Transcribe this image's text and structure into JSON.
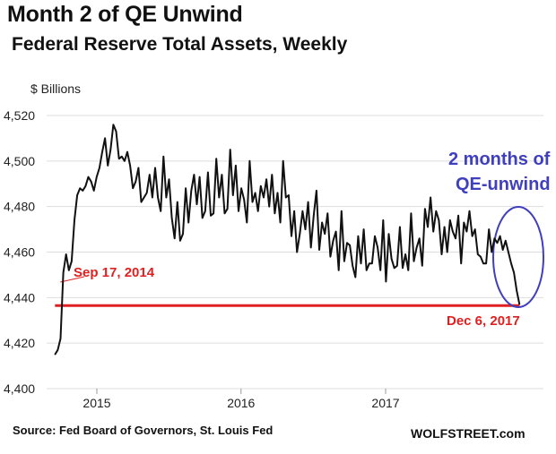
{
  "title": "Month 2 of QE Unwind",
  "subtitle": "Federal Reserve Total Assets, Weekly",
  "source": "Source: Fed Board of Governors, St. Louis Fed",
  "brand": "WOLFSTREET.com",
  "colors": {
    "line": "#111111",
    "reference_line": "#e02020",
    "annotation_red": "#e02020",
    "annotation_blue": "#3f3fbf",
    "grid": "#dddddd"
  },
  "chart_data": {
    "type": "line",
    "title": "Federal Reserve Total Assets, Weekly",
    "ylabel": "$ Billions",
    "xlabel": "",
    "ylim": [
      4400,
      4525
    ],
    "yticks": [
      4400,
      4420,
      4440,
      4460,
      4480,
      4500,
      4520
    ],
    "ytick_labels": [
      "4,400",
      "4,420",
      "4,440",
      "4,460",
      "4,480",
      "4,500",
      "4,520"
    ],
    "xticks": [
      {
        "label": "2015",
        "x": "2015-01-01"
      },
      {
        "label": "2016",
        "x": "2016-01-01"
      },
      {
        "label": "2017",
        "x": "2017-01-01"
      }
    ],
    "grid": "horizontal",
    "series": [
      {
        "frequency": "weekly",
        "start": "2014-09-17",
        "end": "2017-12-06",
        "values": [
          4415,
          4417,
          4422,
          4451,
          4459,
          4452,
          4456,
          4474,
          4485,
          4488,
          4487,
          4489,
          4493,
          4491,
          4487,
          4493,
          4497,
          4504,
          4510,
          4498,
          4505,
          4516,
          4513,
          4501,
          4502,
          4500,
          4504,
          4498,
          4488,
          4491,
          4497,
          4482,
          4484,
          4486,
          4494,
          4484,
          4497,
          4484,
          4478,
          4502,
          4484,
          4492,
          4475,
          4466,
          4482,
          4465,
          4468,
          4488,
          4473,
          4487,
          4494,
          4481,
          4493,
          4475,
          4478,
          4495,
          4476,
          4477,
          4501,
          4484,
          4494,
          4477,
          4479,
          4505,
          4485,
          4498,
          4478,
          4488,
          4483,
          4473,
          4500,
          4482,
          4486,
          4478,
          4489,
          4484,
          4492,
          4480,
          4494,
          4477,
          4486,
          4473,
          4500,
          4484,
          4485,
          4467,
          4478,
          4460,
          4468,
          4478,
          4470,
          4482,
          4462,
          4476,
          4487,
          4461,
          4473,
          4468,
          4477,
          4458,
          4465,
          4469,
          4452,
          4478,
          4456,
          4464,
          4463,
          4454,
          4449,
          4467,
          4455,
          4470,
          4452,
          4455,
          4455,
          4467,
          4462,
          4452,
          4474,
          4447,
          4468,
          4457,
          4453,
          4454,
          4471,
          4453,
          4459,
          4452,
          4477,
          4456,
          4462,
          4466,
          4454,
          4479,
          4471,
          4484,
          4469,
          4478,
          4474,
          4459,
          4471,
          4460,
          4474,
          4469,
          4466,
          4476,
          4455,
          4473,
          4469,
          4478,
          4467,
          4470,
          4459,
          4458,
          4455,
          4455,
          4470,
          4460,
          4466,
          4464,
          4467,
          4461,
          4465,
          4460,
          4455,
          4451,
          4443,
          4437
        ]
      }
    ],
    "reference_line": {
      "y": 4436.5,
      "start": "2014-09-17",
      "end": "2017-12-06"
    },
    "annotations": [
      {
        "text": "Sep 17, 2014",
        "x": "2014-09-17"
      },
      {
        "text": "Dec 6, 2017",
        "x": "2017-12-06"
      },
      {
        "text": "2 months of",
        "x": "2017-10-11"
      },
      {
        "text": "QE-unwind",
        "x": "2017-10-11"
      }
    ]
  }
}
